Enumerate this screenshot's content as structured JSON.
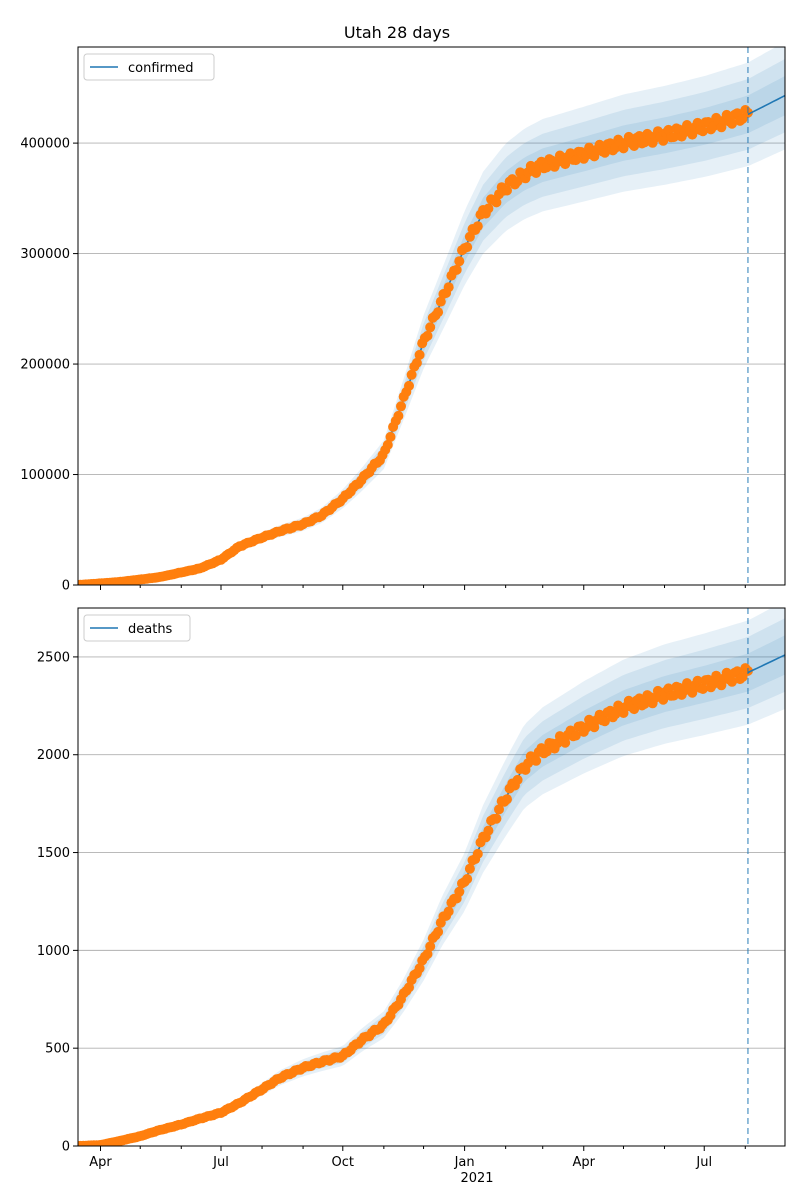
{
  "chart_data": {
    "title": "Utah 28 days",
    "x_tick_labels": [
      "Apr",
      "Jul",
      "Oct",
      "Jan",
      "Apr",
      "Jul"
    ],
    "x_year_label": "2021",
    "x_start": "2020-03-15",
    "x_end": "2021-08-31",
    "forecast_start": "2021-08-03",
    "colors": {
      "fit": "#1f77b4",
      "observed": "#ff7f0e",
      "band": "#1f77b4"
    },
    "panels": [
      {
        "type": "line",
        "legend": "confirmed",
        "legend_position": "upper-left",
        "grid": "y",
        "ylim": [
          0,
          487000
        ],
        "yticks": [
          0,
          100000,
          200000,
          300000,
          400000
        ],
        "ytick_labels": [
          "0",
          "100000",
          "200000",
          "300000",
          "400000"
        ],
        "band_fraction": [
          0.11,
          0.075,
          0.04
        ],
        "fit": [
          [
            "2020-03-15",
            0
          ],
          [
            "2020-04-15",
            2700
          ],
          [
            "2020-05-15",
            7000
          ],
          [
            "2020-06-15",
            15000
          ],
          [
            "2020-07-01",
            23000
          ],
          [
            "2020-07-15",
            35000
          ],
          [
            "2020-08-01",
            43000
          ],
          [
            "2020-08-15",
            49000
          ],
          [
            "2020-09-01",
            55000
          ],
          [
            "2020-09-15",
            63000
          ],
          [
            "2020-10-01",
            78000
          ],
          [
            "2020-10-15",
            95000
          ],
          [
            "2020-11-01",
            118000
          ],
          [
            "2020-11-15",
            165000
          ],
          [
            "2020-12-01",
            220000
          ],
          [
            "2020-12-15",
            258000
          ],
          [
            "2021-01-01",
            305000
          ],
          [
            "2021-01-15",
            337000
          ],
          [
            "2021-02-01",
            360000
          ],
          [
            "2021-02-15",
            372000
          ],
          [
            "2021-03-01",
            380000
          ],
          [
            "2021-04-01",
            390000
          ],
          [
            "2021-05-01",
            400000
          ],
          [
            "2021-06-01",
            407000
          ],
          [
            "2021-07-01",
            415000
          ],
          [
            "2021-08-03",
            426000
          ]
        ],
        "forecast": [
          [
            "2021-08-03",
            426000
          ],
          [
            "2021-08-31",
            443000
          ]
        ]
      },
      {
        "type": "line",
        "legend": "deaths",
        "legend_position": "upper-left",
        "grid": "y",
        "ylim": [
          0,
          2750
        ],
        "yticks": [
          0,
          500,
          1000,
          1500,
          2000,
          2500
        ],
        "ytick_labels": [
          "0",
          "500",
          "1000",
          "1500",
          "2000",
          "2500"
        ],
        "band_fraction": [
          0.11,
          0.075,
          0.04
        ],
        "fit": [
          [
            "2020-03-15",
            0
          ],
          [
            "2020-04-01",
            5
          ],
          [
            "2020-04-15",
            25
          ],
          [
            "2020-05-01",
            50
          ],
          [
            "2020-05-15",
            80
          ],
          [
            "2020-06-01",
            110
          ],
          [
            "2020-06-15",
            140
          ],
          [
            "2020-07-01",
            170
          ],
          [
            "2020-07-15",
            220
          ],
          [
            "2020-08-01",
            290
          ],
          [
            "2020-08-15",
            350
          ],
          [
            "2020-09-01",
            400
          ],
          [
            "2020-09-15",
            430
          ],
          [
            "2020-10-01",
            460
          ],
          [
            "2020-10-15",
            540
          ],
          [
            "2020-11-01",
            620
          ],
          [
            "2020-11-15",
            760
          ],
          [
            "2020-12-01",
            950
          ],
          [
            "2020-12-15",
            1150
          ],
          [
            "2021-01-01",
            1350
          ],
          [
            "2021-01-15",
            1570
          ],
          [
            "2021-02-01",
            1780
          ],
          [
            "2021-02-15",
            1940
          ],
          [
            "2021-03-01",
            2020
          ],
          [
            "2021-04-01",
            2140
          ],
          [
            "2021-05-01",
            2240
          ],
          [
            "2021-06-01",
            2310
          ],
          [
            "2021-07-01",
            2360
          ],
          [
            "2021-08-03",
            2420
          ]
        ],
        "forecast": [
          [
            "2021-08-03",
            2420
          ],
          [
            "2021-08-31",
            2510
          ]
        ]
      }
    ]
  }
}
